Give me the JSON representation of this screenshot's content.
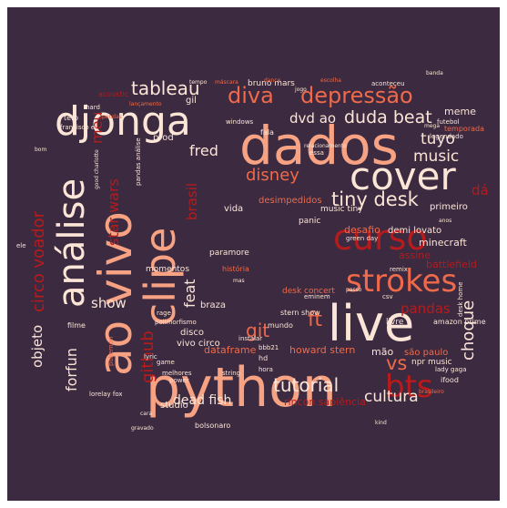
{
  "word_cloud": {
    "background_color": "#3b2a40",
    "palette": {
      "pale": "#fbe5d6",
      "salmon": "#f7a282",
      "coral": "#ef6a4a",
      "red": "#c8241e",
      "dark_red": "#8f0c12",
      "deep": "#6a0f1c"
    },
    "words": [
      {
        "text": "python",
        "color": "#f7a282"
      },
      {
        "text": "dados",
        "color": "#f7a282"
      },
      {
        "text": "djonga",
        "color": "#fbe5d6"
      },
      {
        "text": "live",
        "color": "#fbe5d6"
      },
      {
        "text": "ao vivo",
        "color": "#f7a282"
      },
      {
        "text": "clipe",
        "color": "#f7a282"
      },
      {
        "text": "análise",
        "color": "#fbe5d6"
      },
      {
        "text": "cover",
        "color": "#fbe5d6"
      },
      {
        "text": "curso",
        "color": "#b71b1b"
      },
      {
        "text": "strokes",
        "color": "#ef6a4a"
      },
      {
        "text": "bts",
        "color": "#b71b1b"
      },
      {
        "text": "diva",
        "color": "#ef6a4a"
      },
      {
        "text": "depressão",
        "color": "#ef6a4a"
      },
      {
        "text": "tableau",
        "color": "#fbe5d6"
      },
      {
        "text": "tiny desk",
        "color": "#fbe5d6"
      },
      {
        "text": "duda beat",
        "color": "#fbe5d6"
      },
      {
        "text": "dvd ao",
        "color": "#fbe5d6"
      },
      {
        "text": "music",
        "color": "#fbe5d6"
      },
      {
        "text": "tuyo",
        "color": "#fbe5d6"
      },
      {
        "text": "fred",
        "color": "#fbe5d6"
      },
      {
        "text": "disney",
        "color": "#ef6a4a"
      },
      {
        "text": "circo voador",
        "color": "#b71b1b"
      },
      {
        "text": "meu",
        "color": "#b71b1b"
      },
      {
        "text": "star wars",
        "color": "#b71b1b"
      },
      {
        "text": "brasil",
        "color": "#b71b1b"
      },
      {
        "text": "show",
        "color": "#fbe5d6"
      },
      {
        "text": "feat",
        "color": "#fbe5d6"
      },
      {
        "text": "ft",
        "color": "#ef6a4a"
      },
      {
        "text": "git",
        "color": "#ef6a4a"
      },
      {
        "text": "github",
        "color": "#b71b1b"
      },
      {
        "text": "vs",
        "color": "#ef6a4a"
      },
      {
        "text": "choque",
        "color": "#fbe5d6"
      },
      {
        "text": "pandas",
        "color": "#b71b1b"
      },
      {
        "text": "tutorial",
        "color": "#fbe5d6"
      },
      {
        "text": "cultura",
        "color": "#fbe5d6"
      },
      {
        "text": "objeto",
        "color": "#fbe5d6"
      },
      {
        "text": "forfun",
        "color": "#fbe5d6"
      },
      {
        "text": "dead fish",
        "color": "#fbe5d6"
      },
      {
        "text": "dataframe",
        "color": "#ef6a4a"
      },
      {
        "text": "howard stern",
        "color": "#ef6a4a"
      },
      {
        "text": "mão",
        "color": "#fbe5d6"
      },
      {
        "text": "rincon sapiência",
        "color": "#b71b1b"
      },
      {
        "text": "são paulo",
        "color": "#ef6a4a"
      },
      {
        "text": "battlefield",
        "color": "#b71b1b"
      },
      {
        "text": "minecraft",
        "color": "#fbe5d6"
      },
      {
        "text": "assine",
        "color": "#b71b1b"
      },
      {
        "text": "demi lovato",
        "color": "#fbe5d6"
      },
      {
        "text": "desafio",
        "color": "#ef6a4a"
      },
      {
        "text": "dá",
        "color": "#b71b1b"
      },
      {
        "text": "primeiro",
        "color": "#fbe5d6"
      },
      {
        "text": "music tiny",
        "color": "#fbe5d6"
      },
      {
        "text": "desimpedidos",
        "color": "#ef6a4a"
      },
      {
        "text": "vida",
        "color": "#fbe5d6"
      },
      {
        "text": "panic",
        "color": "#fbe5d6"
      },
      {
        "text": "meme",
        "color": "#fbe5d6"
      },
      {
        "text": "prod",
        "color": "#fbe5d6"
      },
      {
        "text": "gil",
        "color": "#fbe5d6"
      },
      {
        "text": "bruno mars",
        "color": "#fbe5d6"
      },
      {
        "text": "acoustic",
        "color": "#b71b1b"
      },
      {
        "text": "hard",
        "color": "#fbe5d6"
      },
      {
        "text": "teto",
        "color": "#fbe5d6"
      },
      {
        "text": "francisco el",
        "color": "#fbe5d6"
      },
      {
        "text": "amazon prime",
        "color": "#fbe5d6"
      },
      {
        "text": "temporada",
        "color": "#ef6a4a"
      },
      {
        "text": "legendado",
        "color": "#fbe5d6"
      },
      {
        "text": "momentos",
        "color": "#fbe5d6"
      },
      {
        "text": "paramore",
        "color": "#fbe5d6"
      },
      {
        "text": "braza",
        "color": "#fbe5d6"
      },
      {
        "text": "disco",
        "color": "#fbe5d6"
      },
      {
        "text": "vivo circo",
        "color": "#fbe5d6"
      },
      {
        "text": "studio",
        "color": "#fbe5d6"
      },
      {
        "text": "bolsonaro",
        "color": "#fbe5d6"
      },
      {
        "text": "lorelay fox",
        "color": "#fbe5d6"
      },
      {
        "text": "filme",
        "color": "#fbe5d6"
      },
      {
        "text": "mundo",
        "color": "#fbe5d6"
      },
      {
        "text": "livre",
        "color": "#fbe5d6"
      },
      {
        "text": "npr music",
        "color": "#fbe5d6"
      },
      {
        "text": "lady gaga",
        "color": "#fbe5d6"
      },
      {
        "text": "ifood",
        "color": "#fbe5d6"
      },
      {
        "text": "hd",
        "color": "#fbe5d6"
      },
      {
        "text": "hora",
        "color": "#fbe5d6"
      },
      {
        "text": "bbb21",
        "color": "#fbe5d6"
      },
      {
        "text": "stern show",
        "color": "#fbe5d6"
      },
      {
        "text": "desk concert",
        "color": "#ef6a4a"
      },
      {
        "text": "eminem",
        "color": "#fbe5d6"
      },
      {
        "text": "csv",
        "color": "#fbe5d6"
      },
      {
        "text": "desk home",
        "color": "#fbe5d6"
      },
      {
        "text": "remix",
        "color": "#fbe5d6"
      },
      {
        "text": "green day",
        "color": "#fbe5d6"
      },
      {
        "text": "futebol",
        "color": "#fbe5d6"
      },
      {
        "text": "windows",
        "color": "#fbe5d6"
      },
      {
        "text": "fala",
        "color": "#fbe5d6"
      },
      {
        "text": "essa",
        "color": "#fbe5d6"
      },
      {
        "text": "relacionamento",
        "color": "#fbe5d6"
      },
      {
        "text": "aconteceu",
        "color": "#fbe5d6"
      },
      {
        "text": "história",
        "color": "#ef6a4a"
      },
      {
        "text": "rage",
        "color": "#fbe5d6"
      },
      {
        "text": "polimorfismo",
        "color": "#fbe5d6"
      },
      {
        "text": "game",
        "color": "#fbe5d6"
      },
      {
        "text": "melhores",
        "color": "#fbe5d6"
      },
      {
        "text": "power",
        "color": "#fbe5d6"
      },
      {
        "text": "string",
        "color": "#fbe5d6"
      },
      {
        "text": "instalar",
        "color": "#fbe5d6"
      },
      {
        "text": "lyric",
        "color": "#fbe5d6"
      },
      {
        "text": "pokemon",
        "color": "#ef6a4a"
      },
      {
        "text": "good charlotte",
        "color": "#fbe5d6"
      },
      {
        "text": "pandas análise",
        "color": "#fbe5d6"
      },
      {
        "text": "ele",
        "color": "#fbe5d6"
      },
      {
        "text": "bom",
        "color": "#fbe5d6"
      },
      {
        "text": "passo",
        "color": "#fbe5d6"
      },
      {
        "text": "anos",
        "color": "#fbe5d6"
      },
      {
        "text": "mas",
        "color": "#fbe5d6"
      },
      {
        "text": "lançamento",
        "color": "#ef6a4a"
      },
      {
        "text": "banda",
        "color": "#fbe5d6"
      },
      {
        "text": "pandas",
        "color": "#ef6a4a"
      },
      {
        "text": "máscara",
        "color": "#ef6a4a"
      },
      {
        "text": "dance",
        "color": "#ef6a4a"
      },
      {
        "text": "jogo",
        "color": "#fbe5d6"
      },
      {
        "text": "escolha",
        "color": "#ef6a4a"
      },
      {
        "text": "mega",
        "color": "#fbe5d6"
      },
      {
        "text": "tempo",
        "color": "#fbe5d6"
      },
      {
        "text": "brasileiro",
        "color": "#ef6a4a"
      },
      {
        "text": "gravado",
        "color": "#fbe5d6"
      },
      {
        "text": "cara",
        "color": "#fbe5d6"
      },
      {
        "text": "kind",
        "color": "#fbe5d6"
      }
    ]
  }
}
